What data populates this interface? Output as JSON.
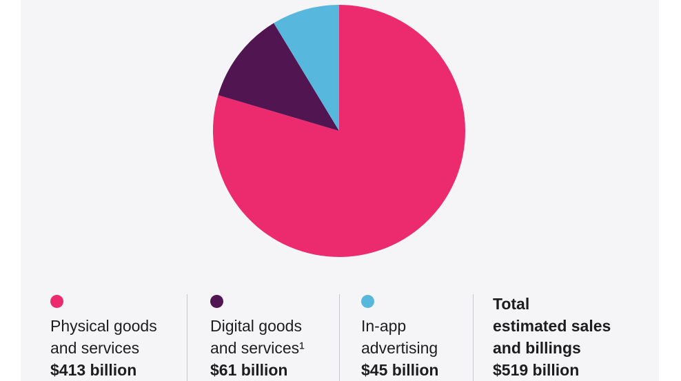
{
  "colors": {
    "physical": "#ec2a6e",
    "digital": "#511552",
    "advertising": "#57b7dd",
    "background": "#f5f5f7",
    "text": "#1d1d1f"
  },
  "chart_data": {
    "type": "pie",
    "title": "",
    "slices": [
      {
        "label": "Physical goods and services",
        "value": 413,
        "color": "#ec2a6e"
      },
      {
        "label": "Digital goods and services¹",
        "value": 61,
        "color": "#511552"
      },
      {
        "label": "In-app advertising",
        "value": 45,
        "color": "#57b7dd"
      }
    ],
    "total": 519,
    "unit": "billion USD",
    "start_angle": "12 o'clock",
    "direction": "clockwise"
  },
  "legend": [
    {
      "line1": "Physical goods",
      "line2": "and services",
      "value": "$413 billion"
    },
    {
      "line1": "Digital goods",
      "line2": "and services¹",
      "value": "$61 billion"
    },
    {
      "line1": "In-app",
      "line2": "advertising",
      "value": "$45 billion"
    }
  ],
  "total": {
    "line1": "Total",
    "line2": "estimated sales",
    "line3": "and billings",
    "value": "$519 billion"
  }
}
